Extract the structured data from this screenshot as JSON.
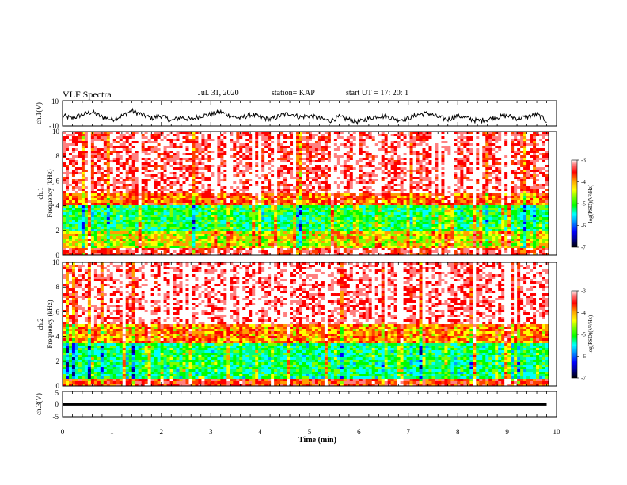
{
  "header": {
    "title": "VLF Spectra",
    "date": "Jul. 31, 2020",
    "station": "station= KAP",
    "start": "start  UT =  17: 20: 1"
  },
  "colors": {
    "spectrum": [
      "#000000",
      "#000080",
      "#0000ff",
      "#00a0ff",
      "#00ffff",
      "#00ff80",
      "#00ff00",
      "#80ff00",
      "#ffff00",
      "#ffa000",
      "#ff4000",
      "#ff0000",
      "#ff8080",
      "#ffffff"
    ]
  },
  "chart_data": [
    {
      "type": "line",
      "name": "ch1-waveform",
      "ylabel": "ch.1(V)",
      "ylim": [
        -10,
        10
      ],
      "yticks": [
        "10",
        "-10"
      ],
      "xlim": [
        0,
        10
      ],
      "data_end_min": 9.8,
      "description_of_values": "waveform fluctuating mostly between -6 and 4 V",
      "x": [
        0.0,
        0.2,
        0.4,
        0.6,
        0.8,
        1.0,
        1.2,
        1.4,
        1.6,
        1.8,
        2.0,
        2.2,
        2.4,
        2.6,
        2.8,
        3.0,
        3.2,
        3.4,
        3.6,
        3.8,
        4.0,
        4.2,
        4.4,
        4.6,
        4.8,
        5.0,
        5.2,
        5.4,
        5.6,
        5.8,
        6.0,
        6.2,
        6.4,
        6.6,
        6.8,
        7.0,
        7.2,
        7.4,
        7.6,
        7.8,
        8.0,
        8.2,
        8.4,
        8.6,
        8.8,
        9.0,
        9.2,
        9.4,
        9.6,
        9.8
      ],
      "y": [
        -2,
        -4,
        -1,
        1,
        -3,
        -5,
        -2,
        2,
        -1,
        -4,
        -2,
        -6,
        -3,
        -5,
        -2,
        -1,
        1,
        -2,
        -4,
        -1,
        -3,
        -5,
        -2,
        0,
        -3,
        -2,
        -4,
        -6,
        -3,
        -5,
        -7,
        -4,
        -2,
        -3,
        -5,
        -4,
        -1,
        0,
        -3,
        -5,
        -2,
        -4,
        -6,
        -5,
        -3,
        -2,
        -4,
        -3,
        -1,
        -6
      ]
    },
    {
      "type": "heatmap",
      "name": "ch1-spectrogram",
      "ylabel": "ch.1\nFrequency  (kHz)",
      "ylim": [
        0,
        10
      ],
      "xlim": [
        0,
        10
      ],
      "yticks": [
        "0",
        "2",
        "4",
        "6",
        "8",
        "10"
      ],
      "colorbar": {
        "label": "log(PSD)(V²/Hz)",
        "range": [
          -7,
          -3
        ],
        "ticks": [
          "-3",
          "-4",
          "-5",
          "-6",
          "-7"
        ]
      },
      "dominant_levels": [
        {
          "freq_range_kHz": [
            5,
            10
          ],
          "log_psd": -3.3
        },
        {
          "freq_range_kHz": [
            4,
            5
          ],
          "log_psd": -4.0
        },
        {
          "freq_range_kHz": [
            2,
            4
          ],
          "log_psd": -5.3
        },
        {
          "freq_range_kHz": [
            0.5,
            2
          ],
          "log_psd": -4.6
        },
        {
          "freq_range_kHz": [
            0,
            0.5
          ],
          "log_psd": -3.5
        }
      ]
    },
    {
      "type": "heatmap",
      "name": "ch2-spectrogram",
      "ylabel": "ch.2\nFrequency  (kHz)",
      "ylim": [
        0,
        10
      ],
      "xlim": [
        0,
        10
      ],
      "yticks": [
        "0",
        "2",
        "4",
        "6",
        "8",
        "10"
      ],
      "colorbar": {
        "label": "log(PSD)(V²/Hz)",
        "range": [
          -7,
          -3
        ],
        "ticks": [
          "-3",
          "-4",
          "-5",
          "-6",
          "-7"
        ]
      },
      "dominant_levels": [
        {
          "freq_range_kHz": [
            5,
            10
          ],
          "log_psd": -3.2
        },
        {
          "freq_range_kHz": [
            3.5,
            5
          ],
          "log_psd": -4.2
        },
        {
          "freq_range_kHz": [
            0.5,
            3.5
          ],
          "log_psd": -5.4
        },
        {
          "freq_range_kHz": [
            0,
            0.5
          ],
          "log_psd": -3.8
        }
      ]
    },
    {
      "type": "line",
      "name": "ch3-waveform",
      "ylabel": "ch.3(V)",
      "ylim": [
        -5,
        5
      ],
      "yticks": [
        "5",
        "0",
        "-5"
      ],
      "xlim": [
        0,
        10
      ],
      "data_end_min": 9.8,
      "xlabel": "Time  (min)",
      "xticks": [
        "0",
        "1",
        "2",
        "3",
        "4",
        "5",
        "6",
        "7",
        "8",
        "9",
        "10"
      ],
      "x": [
        0,
        9.8
      ],
      "y": [
        0,
        0
      ],
      "band_halfwidth": 0.6
    }
  ]
}
